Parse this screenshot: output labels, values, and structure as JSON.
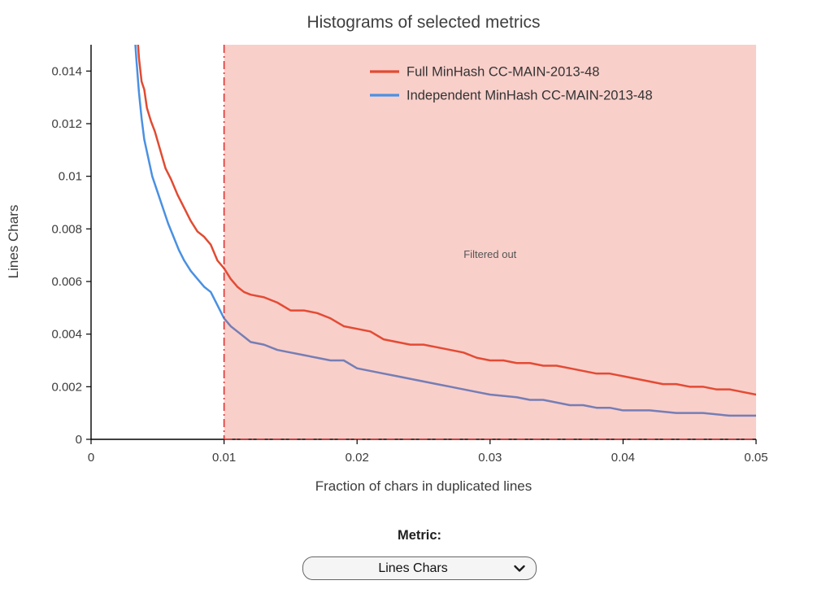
{
  "chart_data": {
    "type": "line",
    "title": "Histograms of selected metrics",
    "xlabel": "Fraction of chars in duplicated lines",
    "ylabel": "Lines Chars",
    "xlim": [
      0,
      0.05
    ],
    "ylim": [
      0,
      0.015
    ],
    "x_ticks": [
      0,
      0.01,
      0.02,
      0.03,
      0.04,
      0.05
    ],
    "y_ticks": [
      0,
      0.002,
      0.004,
      0.006,
      0.008,
      0.01,
      0.012,
      0.014
    ],
    "grid": false,
    "legend_position": "top-right-inside",
    "series": [
      {
        "name": "Full MinHash CC-MAIN-2013-48",
        "color": "#e14b32",
        "x": [
          0.0034,
          0.0036,
          0.0038,
          0.004,
          0.0042,
          0.0045,
          0.0048,
          0.0052,
          0.0056,
          0.006,
          0.0065,
          0.007,
          0.0075,
          0.008,
          0.0085,
          0.009,
          0.0095,
          0.01,
          0.0105,
          0.011,
          0.0115,
          0.012,
          0.013,
          0.014,
          0.015,
          0.016,
          0.017,
          0.018,
          0.019,
          0.02,
          0.021,
          0.022,
          0.023,
          0.024,
          0.025,
          0.026,
          0.027,
          0.028,
          0.029,
          0.03,
          0.031,
          0.032,
          0.033,
          0.034,
          0.035,
          0.036,
          0.037,
          0.038,
          0.039,
          0.04,
          0.041,
          0.042,
          0.043,
          0.044,
          0.045,
          0.046,
          0.047,
          0.048,
          0.049,
          0.05
        ],
        "y": [
          0.016,
          0.0145,
          0.0136,
          0.0133,
          0.0126,
          0.0121,
          0.0117,
          0.011,
          0.0103,
          0.0099,
          0.0093,
          0.0088,
          0.0083,
          0.0079,
          0.0077,
          0.0074,
          0.0068,
          0.0065,
          0.0061,
          0.0058,
          0.0056,
          0.0055,
          0.0054,
          0.0052,
          0.0049,
          0.0049,
          0.0048,
          0.0046,
          0.0043,
          0.0042,
          0.0041,
          0.0038,
          0.0037,
          0.0036,
          0.0036,
          0.0035,
          0.0034,
          0.0033,
          0.0031,
          0.003,
          0.003,
          0.0029,
          0.0029,
          0.0028,
          0.0028,
          0.0027,
          0.0026,
          0.0025,
          0.0025,
          0.0024,
          0.0023,
          0.0022,
          0.0021,
          0.0021,
          0.002,
          0.002,
          0.0019,
          0.0019,
          0.0018,
          0.0017
        ]
      },
      {
        "name": "Independent MinHash CC-MAIN-2013-48",
        "color": "#4a90e2",
        "x": [
          0.0032,
          0.0034,
          0.0036,
          0.0038,
          0.004,
          0.0043,
          0.0046,
          0.005,
          0.0054,
          0.0058,
          0.0062,
          0.0066,
          0.007,
          0.0075,
          0.008,
          0.0085,
          0.009,
          0.0095,
          0.01,
          0.0105,
          0.011,
          0.0115,
          0.012,
          0.013,
          0.014,
          0.015,
          0.016,
          0.017,
          0.018,
          0.019,
          0.02,
          0.021,
          0.022,
          0.023,
          0.024,
          0.025,
          0.026,
          0.027,
          0.028,
          0.029,
          0.03,
          0.031,
          0.032,
          0.033,
          0.034,
          0.035,
          0.036,
          0.037,
          0.038,
          0.039,
          0.04,
          0.042,
          0.044,
          0.046,
          0.048,
          0.05
        ],
        "y": [
          0.016,
          0.0145,
          0.0132,
          0.0122,
          0.0114,
          0.0107,
          0.01,
          0.0094,
          0.0088,
          0.0082,
          0.0077,
          0.0072,
          0.0068,
          0.0064,
          0.0061,
          0.0058,
          0.0056,
          0.0051,
          0.0046,
          0.0043,
          0.0041,
          0.0039,
          0.0037,
          0.0036,
          0.0034,
          0.0033,
          0.0032,
          0.0031,
          0.003,
          0.003,
          0.0027,
          0.0026,
          0.0025,
          0.0024,
          0.0023,
          0.0022,
          0.0021,
          0.002,
          0.0019,
          0.0018,
          0.0017,
          0.00165,
          0.0016,
          0.0015,
          0.0015,
          0.0014,
          0.0013,
          0.0013,
          0.0012,
          0.0012,
          0.0011,
          0.0011,
          0.001,
          0.001,
          0.0009,
          0.0009
        ]
      }
    ],
    "filtered_region": {
      "x_start": 0.01,
      "x_end": 0.05,
      "fill": "rgba(231, 76, 60, 0.27)",
      "border_color": "#e03131",
      "border_style": "dash-dot",
      "label": "Filtered out",
      "label_x": 0.03,
      "label_y": 0.0069
    }
  },
  "controls": {
    "metric_label": "Metric:",
    "metric_select": {
      "value": "Lines Chars",
      "options": [
        "Lines Chars"
      ]
    }
  }
}
